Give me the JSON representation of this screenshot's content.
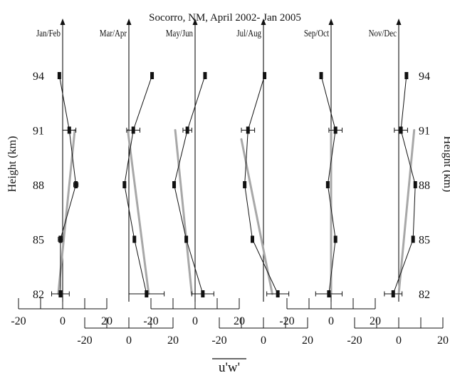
{
  "chart_data": {
    "type": "line",
    "title": "Socorro, NM, April 2002- Jan 2005",
    "xlabel": "u'w'",
    "ylabel_left": "Height (km)",
    "ylabel_right": "Height (km)",
    "heights": [
      94,
      91,
      88,
      85,
      82
    ],
    "height_tick_labels": [
      "94",
      "91",
      "88",
      "85",
      "82"
    ],
    "xlim": [
      -20,
      20
    ],
    "x_ticks": [
      -20,
      0,
      20
    ],
    "x_tick_labels": [
      "-20",
      "0",
      "20"
    ],
    "panels": [
      {
        "name": "Jan/Feb",
        "values": [
          -1.5,
          3.0,
          6.0,
          -1.0,
          -1.0
        ],
        "errors": [
          0,
          3,
          1,
          1,
          4
        ],
        "fit": {
          "h0": 82,
          "x0": -2,
          "h1": 91,
          "x1": 5.5
        }
      },
      {
        "name": "Mar/Apr",
        "values": [
          10.5,
          2.0,
          -2.0,
          2.5,
          8.0
        ],
        "errors": [
          0,
          3,
          0,
          0,
          8
        ],
        "fit": {
          "h0": 82,
          "x0": 9,
          "h1": 91,
          "x1": -0.5
        }
      },
      {
        "name": "May/Jun",
        "values": [
          4.5,
          -3.5,
          -9.5,
          -4.0,
          3.5
        ],
        "errors": [
          0,
          2,
          0,
          0,
          5
        ],
        "fit": {
          "h0": 82,
          "x0": -1.5,
          "h1": 91,
          "x1": -9
        }
      },
      {
        "name": "Jul/Aug",
        "values": [
          0.5,
          -7.0,
          -8.5,
          -5.0,
          6.5
        ],
        "errors": [
          0,
          3,
          0,
          0,
          5
        ],
        "fit": {
          "h0": 82,
          "x0": 4,
          "h1": 90.5,
          "x1": -10
        }
      },
      {
        "name": "Sep/Oct",
        "values": [
          -4.5,
          2.0,
          -1.5,
          2.0,
          -1.0
        ],
        "errors": [
          0,
          3,
          0,
          0,
          6
        ],
        "fit": {
          "h0": 82,
          "x0": 0,
          "h1": 91,
          "x1": 0
        }
      },
      {
        "name": "Nov/Dec",
        "values": [
          3.5,
          1.0,
          7.5,
          6.5,
          -2.5
        ],
        "errors": [
          0,
          3,
          0,
          0,
          4
        ],
        "fit": {
          "h0": 82,
          "x0": 0,
          "h1": 91,
          "x1": 7
        }
      }
    ],
    "colors": {
      "profile": "#111111",
      "fit": "#a8a8a8"
    },
    "grid": false,
    "legend": "none"
  }
}
